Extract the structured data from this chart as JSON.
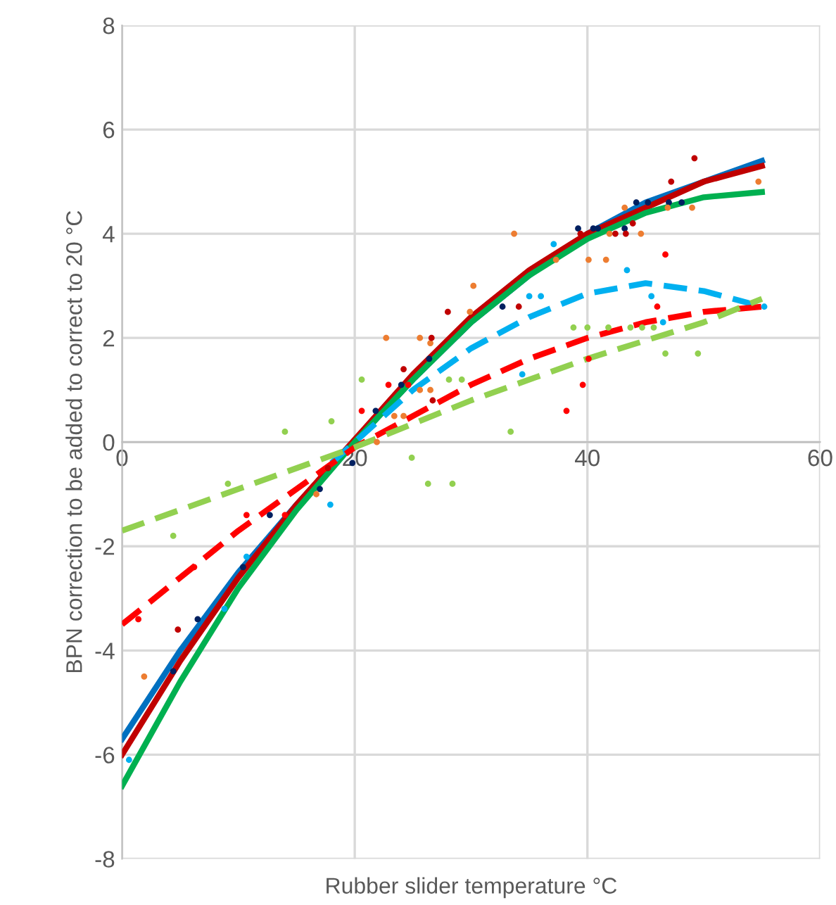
{
  "chart_data": {
    "type": "scatter",
    "xlabel": "Rubber slider temperature °C",
    "ylabel": "BPN correction to be added to correct to 20 °C",
    "xlim": [
      0,
      60
    ],
    "ylim": [
      -8,
      8
    ],
    "xticks": [
      0,
      20,
      40,
      60
    ],
    "yticks": [
      -8,
      -6,
      -4,
      -2,
      0,
      2,
      4,
      6,
      8
    ],
    "grid": true,
    "legend": false,
    "series": [
      {
        "marker": "circle",
        "color": "#002060",
        "x": [
          4.4,
          6.5,
          10.4,
          12.7,
          17,
          19.8,
          21.8,
          24,
          26.4,
          32.7,
          39.2,
          40.5,
          40.9,
          43.2,
          44.2,
          45.2,
          47,
          48.1
        ],
        "values": [
          -4.4,
          -3.4,
          -2.4,
          -1.4,
          -0.9,
          -0.4,
          0.6,
          1.1,
          1.6,
          2.6,
          4.1,
          4.1,
          4.1,
          4.1,
          4.6,
          4.6,
          4.6,
          4.6
        ]
      },
      {
        "marker": "circle",
        "color": "#ed7d31",
        "x": [
          1.9,
          16.7,
          21.9,
          23.4,
          24.2,
          22.7,
          25.6,
          26.5,
          25.6,
          26.5,
          29.9,
          30.2,
          33.7,
          37.3,
          40.1,
          41.6,
          41.9,
          44.6,
          43.2,
          46.9,
          49,
          54.7
        ],
        "values": [
          -4.5,
          -1.0,
          0.0,
          0.5,
          0.5,
          2.0,
          2.0,
          1.9,
          1.0,
          1.0,
          2.5,
          3.0,
          4.0,
          3.5,
          3.5,
          3.5,
          4.0,
          4.0,
          4.5,
          4.5,
          4.5,
          5.0
        ]
      },
      {
        "marker": "circle",
        "color": "#ff0000",
        "x": [
          1.4,
          6.2,
          10.7,
          14,
          20.6,
          22.9,
          24.6,
          38.2,
          39.6,
          40.1,
          46,
          46.7
        ],
        "values": [
          -3.4,
          -2.4,
          -1.4,
          -1.4,
          0.6,
          1.1,
          1.1,
          0.6,
          1.1,
          1.6,
          2.6,
          3.6
        ]
      },
      {
        "marker": "circle",
        "color": "#c00000",
        "x": [
          4.8,
          17.7,
          24.2,
          26.7,
          26.6,
          28,
          34.1,
          39.4,
          42.4,
          43.3,
          43.9,
          47.2,
          49.2
        ],
        "values": [
          -3.6,
          -0.5,
          1.4,
          0.8,
          2.0,
          2.5,
          2.6,
          4.0,
          4.0,
          4.0,
          4.2,
          5.0,
          5.45
        ]
      },
      {
        "marker": "circle",
        "color": "#00b0f0",
        "x": [
          0.6,
          8.8,
          10.7,
          17.9,
          34.4,
          35,
          36,
          37.1,
          43.4,
          45.5,
          46.5,
          55.2
        ],
        "values": [
          -6.1,
          -3.2,
          -2.2,
          -1.2,
          1.3,
          2.8,
          2.8,
          3.8,
          3.3,
          2.8,
          2.3,
          2.6
        ]
      },
      {
        "marker": "circle",
        "color": "#92d050",
        "x": [
          4.4,
          9.1,
          14,
          18,
          20.6,
          24.9,
          26.3,
          28.4,
          28.1,
          29.2,
          33.4,
          38.8,
          40,
          41.8,
          43.7,
          44.7,
          45.7,
          46.7,
          49.5
        ],
        "values": [
          -1.8,
          -0.8,
          0.2,
          0.4,
          1.2,
          -0.3,
          -0.8,
          -0.8,
          1.2,
          1.2,
          0.2,
          2.2,
          2.2,
          2.2,
          2.2,
          2.2,
          2.2,
          1.7,
          1.7
        ]
      },
      {
        "type": "line",
        "marker": "none",
        "line_style": "solid",
        "color": "#0070c0",
        "x": [
          0,
          5,
          10,
          15,
          20,
          25,
          30,
          35,
          40,
          45,
          50,
          55
        ],
        "values": [
          -5.7,
          -4.0,
          -2.5,
          -1.2,
          0.0,
          1.2,
          2.3,
          3.2,
          4.0,
          4.6,
          5.0,
          5.4
        ]
      },
      {
        "type": "line",
        "marker": "none",
        "line_style": "solid",
        "color": "#c00000",
        "x": [
          0,
          5,
          10,
          15,
          20,
          25,
          30,
          35,
          40,
          45,
          50,
          55
        ],
        "values": [
          -6.0,
          -4.2,
          -2.6,
          -1.2,
          0.05,
          1.3,
          2.4,
          3.3,
          4.0,
          4.5,
          5.0,
          5.3
        ]
      },
      {
        "type": "line",
        "marker": "none",
        "line_style": "solid",
        "color": "#00b050",
        "x": [
          0,
          5,
          10,
          15,
          20,
          25,
          30,
          35,
          40,
          45,
          50,
          55
        ],
        "values": [
          -6.6,
          -4.6,
          -2.8,
          -1.3,
          0.0,
          1.2,
          2.3,
          3.2,
          3.9,
          4.4,
          4.7,
          4.8
        ]
      },
      {
        "type": "line",
        "marker": "none",
        "line_style": "dashed",
        "color": "#00b0f0",
        "x": [
          18,
          20,
          25,
          30,
          35,
          40,
          45,
          50,
          55
        ],
        "values": [
          -0.4,
          0.0,
          1.0,
          1.8,
          2.4,
          2.85,
          3.05,
          2.9,
          2.6
        ]
      },
      {
        "type": "line",
        "marker": "none",
        "line_style": "dashed",
        "color": "#ff0000",
        "x": [
          0,
          5,
          10,
          15,
          20,
          25,
          30,
          35,
          40,
          45,
          50,
          55
        ],
        "values": [
          -3.5,
          -2.6,
          -1.7,
          -0.9,
          -0.1,
          0.5,
          1.1,
          1.6,
          2.0,
          2.3,
          2.5,
          2.6
        ]
      },
      {
        "type": "line",
        "marker": "none",
        "line_style": "dashed",
        "color": "#92d050",
        "x": [
          0,
          10,
          20,
          30,
          40,
          50,
          55
        ],
        "values": [
          -1.7,
          -0.9,
          -0.1,
          0.8,
          1.6,
          2.3,
          2.75
        ]
      }
    ]
  }
}
